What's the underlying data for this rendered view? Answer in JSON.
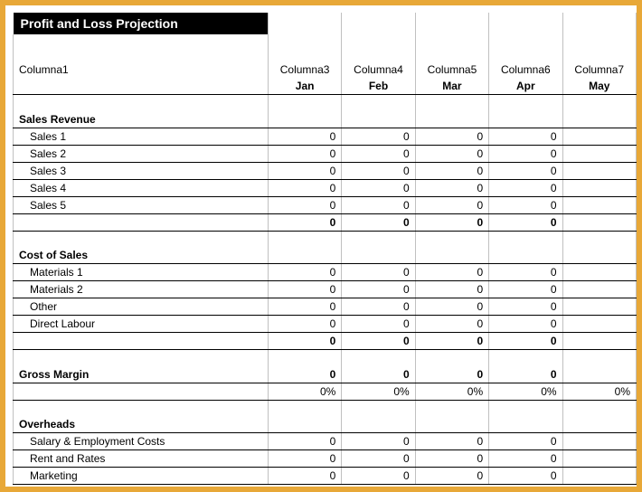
{
  "title": "Profit and Loss Projection",
  "colname_label": "Columna1",
  "colnames": [
    "Columna3",
    "Columna4",
    "Columna5",
    "Columna6",
    "Columna7"
  ],
  "months": [
    "Jan",
    "Feb",
    "Mar",
    "Apr",
    "May"
  ],
  "sections": {
    "sales_revenue": {
      "header": "Sales Revenue",
      "rows": [
        {
          "label": "Sales 1",
          "vals": [
            "0",
            "0",
            "0",
            "0",
            ""
          ]
        },
        {
          "label": "Sales 2",
          "vals": [
            "0",
            "0",
            "0",
            "0",
            ""
          ]
        },
        {
          "label": "Sales 3",
          "vals": [
            "0",
            "0",
            "0",
            "0",
            ""
          ]
        },
        {
          "label": "Sales 4",
          "vals": [
            "0",
            "0",
            "0",
            "0",
            ""
          ]
        },
        {
          "label": "Sales 5",
          "vals": [
            "0",
            "0",
            "0",
            "0",
            ""
          ]
        }
      ],
      "total": {
        "label": "",
        "vals": [
          "0",
          "0",
          "0",
          "0",
          ""
        ]
      }
    },
    "cost_of_sales": {
      "header": "Cost of Sales",
      "rows": [
        {
          "label": "Materials 1",
          "vals": [
            "0",
            "0",
            "0",
            "0",
            ""
          ]
        },
        {
          "label": "Materials 2",
          "vals": [
            "0",
            "0",
            "0",
            "0",
            ""
          ]
        },
        {
          "label": "Other",
          "vals": [
            "0",
            "0",
            "0",
            "0",
            ""
          ]
        },
        {
          "label": "Direct Labour",
          "vals": [
            "0",
            "0",
            "0",
            "0",
            ""
          ]
        }
      ],
      "total": {
        "label": "",
        "vals": [
          "0",
          "0",
          "0",
          "0",
          ""
        ]
      }
    },
    "gross_margin": {
      "header": "Gross Margin",
      "vals": [
        "0",
        "0",
        "0",
        "0",
        ""
      ],
      "pct": [
        "0%",
        "0%",
        "0%",
        "0%",
        "0%"
      ]
    },
    "overheads": {
      "header": "Overheads",
      "rows": [
        {
          "label": "Salary & Employment Costs",
          "vals": [
            "0",
            "0",
            "0",
            "0",
            ""
          ]
        },
        {
          "label": "Rent and Rates",
          "vals": [
            "0",
            "0",
            "0",
            "0",
            ""
          ]
        },
        {
          "label": "Marketing",
          "vals": [
            "0",
            "0",
            "0",
            "0",
            ""
          ]
        }
      ]
    }
  },
  "colors": {
    "frame": "#e8a838",
    "title_bg": "#000000",
    "title_fg": "#ffffff",
    "grid": "#c0c0c0",
    "rule": "#000000"
  }
}
